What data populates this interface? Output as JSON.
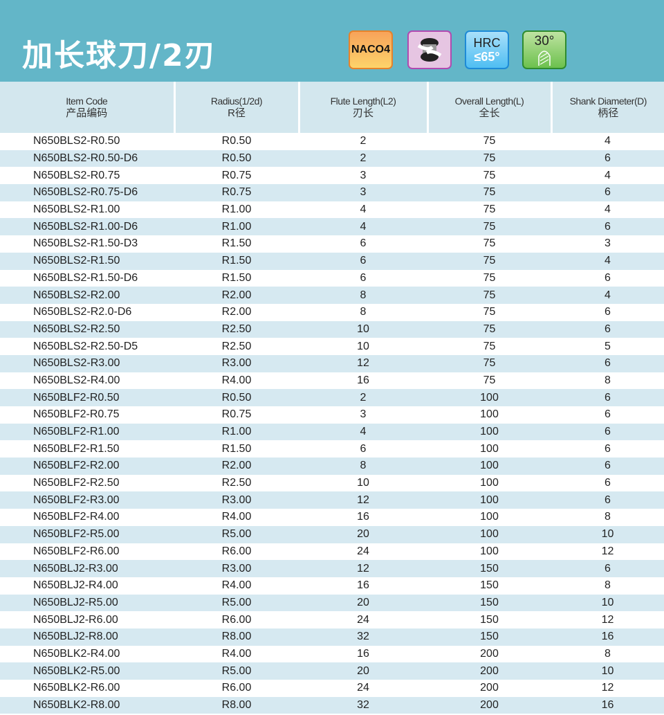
{
  "title": "加长球刀/2刃",
  "badges": {
    "coating": "NACO4",
    "hrc_label": "HRC",
    "hrc_value": "≤65°",
    "helix": "30°"
  },
  "colors": {
    "banner": "#63b6c8",
    "row_alt": "#d6e9f1"
  },
  "headers": [
    {
      "en": "Item Code",
      "zh": "产品编码"
    },
    {
      "en": "Radius(1/2d)",
      "zh": "R径"
    },
    {
      "en": "Flute Length(L2)",
      "zh": "刃长"
    },
    {
      "en": "Overall Length(L)",
      "zh": "全长"
    },
    {
      "en": "Shank Diameter(D)",
      "zh": "柄径"
    }
  ],
  "rows": [
    [
      "N650BLS2-R0.50",
      "R0.50",
      "2",
      "75",
      "4"
    ],
    [
      "N650BLS2-R0.50-D6",
      "R0.50",
      "2",
      "75",
      "6"
    ],
    [
      "N650BLS2-R0.75",
      "R0.75",
      "3",
      "75",
      "4"
    ],
    [
      "N650BLS2-R0.75-D6",
      "R0.75",
      "3",
      "75",
      "6"
    ],
    [
      "N650BLS2-R1.00",
      "R1.00",
      "4",
      "75",
      "4"
    ],
    [
      "N650BLS2-R1.00-D6",
      "R1.00",
      "4",
      "75",
      "6"
    ],
    [
      "N650BLS2-R1.50-D3",
      "R1.50",
      "6",
      "75",
      "3"
    ],
    [
      "N650BLS2-R1.50",
      "R1.50",
      "6",
      "75",
      "4"
    ],
    [
      "N650BLS2-R1.50-D6",
      "R1.50",
      "6",
      "75",
      "6"
    ],
    [
      "N650BLS2-R2.00",
      "R2.00",
      "8",
      "75",
      "4"
    ],
    [
      "N650BLS2-R2.0-D6",
      "R2.00",
      "8",
      "75",
      "6"
    ],
    [
      "N650BLS2-R2.50",
      "R2.50",
      "10",
      "75",
      "6"
    ],
    [
      "N650BLS2-R2.50-D5",
      "R2.50",
      "10",
      "75",
      "5"
    ],
    [
      "N650BLS2-R3.00",
      "R3.00",
      "12",
      "75",
      "6"
    ],
    [
      "N650BLS2-R4.00",
      "R4.00",
      "16",
      "75",
      "8"
    ],
    [
      "N650BLF2-R0.50",
      "R0.50",
      "2",
      "100",
      "6"
    ],
    [
      "N650BLF2-R0.75",
      "R0.75",
      "3",
      "100",
      "6"
    ],
    [
      "N650BLF2-R1.00",
      "R1.00",
      "4",
      "100",
      "6"
    ],
    [
      "N650BLF2-R1.50",
      "R1.50",
      "6",
      "100",
      "6"
    ],
    [
      "N650BLF2-R2.00",
      "R2.00",
      "8",
      "100",
      "6"
    ],
    [
      "N650BLF2-R2.50",
      "R2.50",
      "10",
      "100",
      "6"
    ],
    [
      "N650BLF2-R3.00",
      "R3.00",
      "12",
      "100",
      "6"
    ],
    [
      "N650BLF2-R4.00",
      "R4.00",
      "16",
      "100",
      "8"
    ],
    [
      "N650BLF2-R5.00",
      "R5.00",
      "20",
      "100",
      "10"
    ],
    [
      "N650BLF2-R6.00",
      "R6.00",
      "24",
      "100",
      "12"
    ],
    [
      "N650BLJ2-R3.00",
      "R3.00",
      "12",
      "150",
      "6"
    ],
    [
      "N650BLJ2-R4.00",
      "R4.00",
      "16",
      "150",
      "8"
    ],
    [
      "N650BLJ2-R5.00",
      "R5.00",
      "20",
      "150",
      "10"
    ],
    [
      "N650BLJ2-R6.00",
      "R6.00",
      "24",
      "150",
      "12"
    ],
    [
      "N650BLJ2-R8.00",
      "R8.00",
      "32",
      "150",
      "16"
    ],
    [
      "N650BLK2-R4.00",
      "R4.00",
      "16",
      "200",
      "8"
    ],
    [
      "N650BLK2-R5.00",
      "R5.00",
      "20",
      "200",
      "10"
    ],
    [
      "N650BLK2-R6.00",
      "R6.00",
      "24",
      "200",
      "12"
    ],
    [
      "N650BLK2-R8.00",
      "R8.00",
      "32",
      "200",
      "16"
    ]
  ]
}
